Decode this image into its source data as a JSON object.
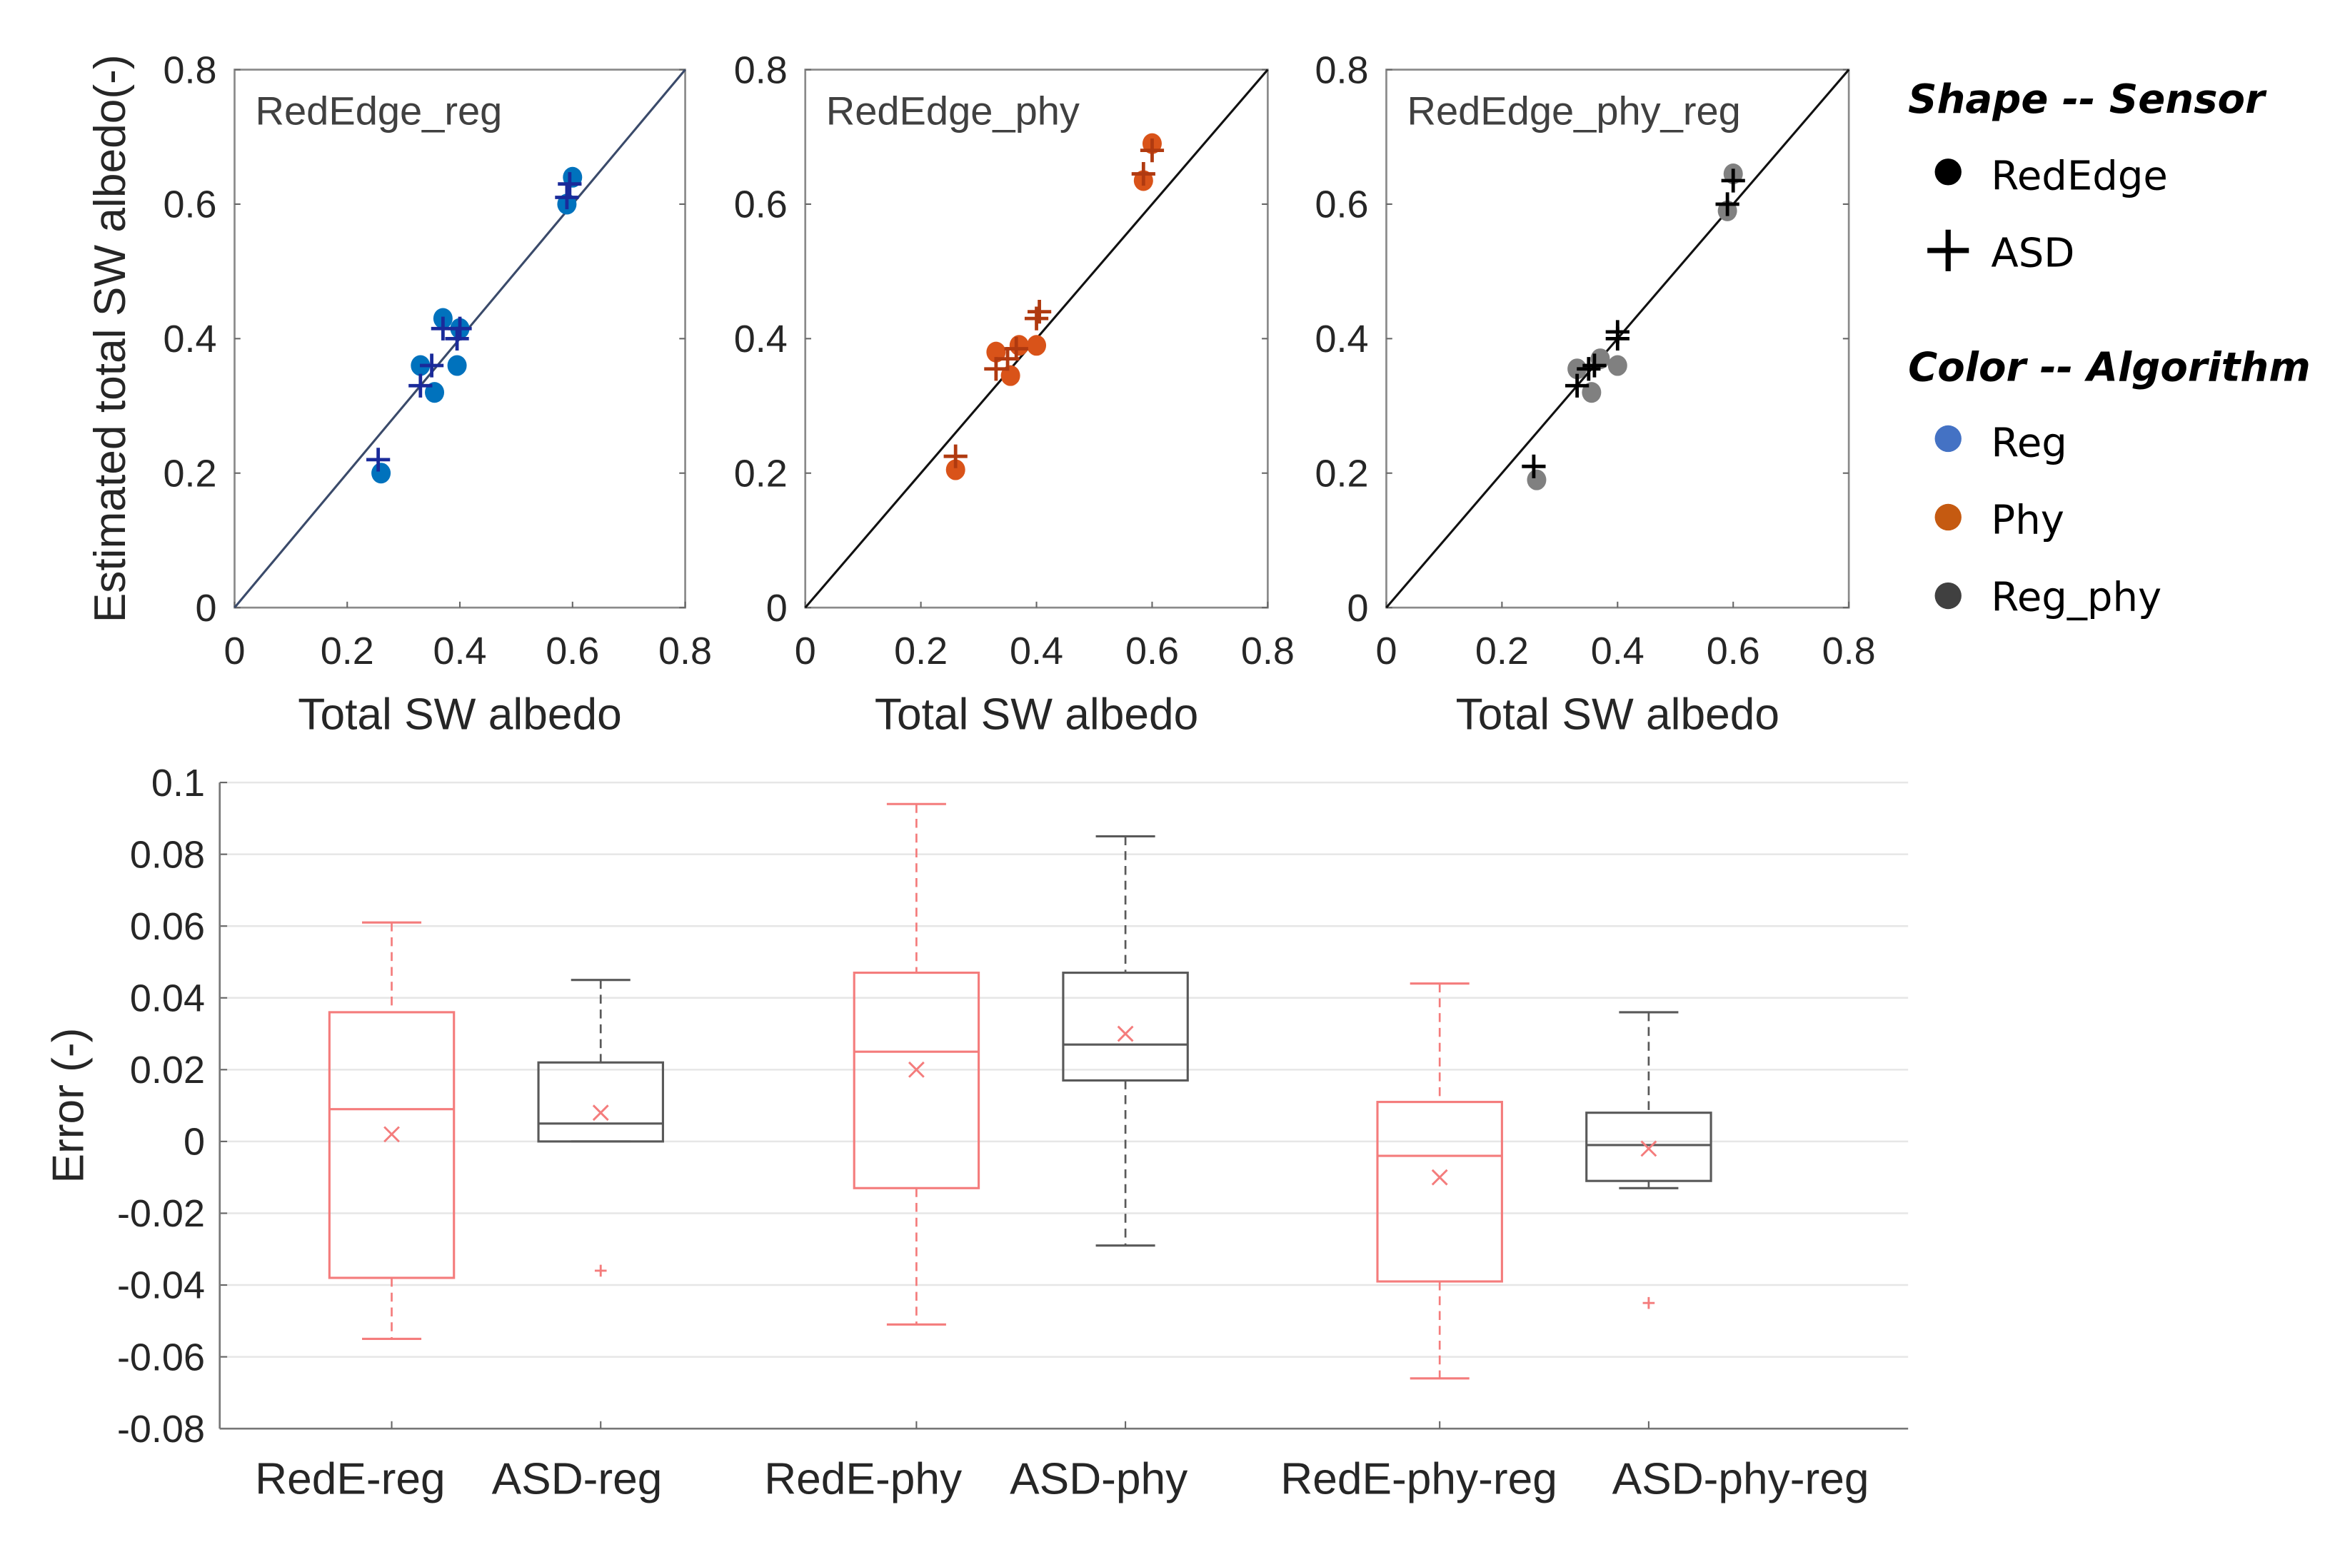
{
  "chart_data": [
    {
      "type": "scatter",
      "title": "RedEdge_reg",
      "xlabel": "Total SW albedo",
      "ylabel": "Estimated total SW albedo(-)",
      "xlim": [
        0,
        0.8
      ],
      "ylim": [
        0,
        0.8
      ],
      "xticks": [
        "0",
        "0.2",
        "0.4",
        "0.6",
        "0.8"
      ],
      "yticks": [
        "0",
        "0.2",
        "0.4",
        "0.6",
        "0.8"
      ],
      "color": "#0072BD",
      "cross_color": "#1a2a9a",
      "series": [
        {
          "name": "RedEdge",
          "marker": "dot",
          "points": [
            [
              0.26,
              0.2
            ],
            [
              0.33,
              0.36
            ],
            [
              0.355,
              0.32
            ],
            [
              0.37,
              0.43
            ],
            [
              0.395,
              0.36
            ],
            [
              0.4,
              0.415
            ],
            [
              0.59,
              0.6
            ],
            [
              0.6,
              0.64
            ]
          ]
        },
        {
          "name": "ASD",
          "marker": "plus",
          "points": [
            [
              0.255,
              0.22
            ],
            [
              0.33,
              0.33
            ],
            [
              0.35,
              0.36
            ],
            [
              0.37,
              0.415
            ],
            [
              0.395,
              0.4
            ],
            [
              0.4,
              0.415
            ],
            [
              0.59,
              0.61
            ],
            [
              0.595,
              0.63
            ]
          ]
        }
      ]
    },
    {
      "type": "scatter",
      "title": "RedEdge_phy",
      "xlabel": "Total SW albedo",
      "xlim": [
        0,
        0.8
      ],
      "ylim": [
        0,
        0.8
      ],
      "xticks": [
        "0",
        "0.2",
        "0.4",
        "0.6",
        "0.8"
      ],
      "yticks": [
        "0",
        "0.2",
        "0.4",
        "0.6",
        "0.8"
      ],
      "color": "#D95319",
      "cross_color": "#b03a10",
      "series": [
        {
          "name": "RedEdge",
          "marker": "dot",
          "points": [
            [
              0.26,
              0.205
            ],
            [
              0.33,
              0.38
            ],
            [
              0.355,
              0.345
            ],
            [
              0.37,
              0.39
            ],
            [
              0.4,
              0.39
            ],
            [
              0.585,
              0.635
            ],
            [
              0.6,
              0.69
            ]
          ]
        },
        {
          "name": "ASD",
          "marker": "plus",
          "points": [
            [
              0.26,
              0.225
            ],
            [
              0.33,
              0.355
            ],
            [
              0.35,
              0.37
            ],
            [
              0.365,
              0.385
            ],
            [
              0.4,
              0.43
            ],
            [
              0.405,
              0.44
            ],
            [
              0.585,
              0.645
            ],
            [
              0.6,
              0.68
            ]
          ]
        }
      ]
    },
    {
      "type": "scatter",
      "title": "RedEdge_phy_reg",
      "xlabel": "Total SW albedo",
      "xlim": [
        0,
        0.8
      ],
      "ylim": [
        0,
        0.8
      ],
      "xticks": [
        "0",
        "0.2",
        "0.4",
        "0.6",
        "0.8"
      ],
      "yticks": [
        "0",
        "0.2",
        "0.4",
        "0.6",
        "0.8"
      ],
      "color": "#808080",
      "cross_color": "#000000",
      "series": [
        {
          "name": "RedEdge",
          "marker": "dot",
          "points": [
            [
              0.26,
              0.19
            ],
            [
              0.33,
              0.355
            ],
            [
              0.355,
              0.32
            ],
            [
              0.37,
              0.37
            ],
            [
              0.4,
              0.36
            ],
            [
              0.59,
              0.59
            ],
            [
              0.6,
              0.645
            ]
          ]
        },
        {
          "name": "ASD",
          "marker": "plus",
          "points": [
            [
              0.255,
              0.21
            ],
            [
              0.33,
              0.33
            ],
            [
              0.35,
              0.355
            ],
            [
              0.36,
              0.36
            ],
            [
              0.4,
              0.4
            ],
            [
              0.4,
              0.41
            ],
            [
              0.59,
              0.6
            ],
            [
              0.6,
              0.635
            ]
          ]
        }
      ]
    },
    {
      "type": "box",
      "ylabel": "Error (-)",
      "ylim": [
        -0.08,
        0.1
      ],
      "yticks": [
        "0.1",
        "0.08",
        "0.06",
        "0.04",
        "0.02",
        "0",
        "-0.02",
        "-0.04",
        "-0.06",
        "-0.08"
      ],
      "categories": [
        "RedE-reg",
        "ASD-reg",
        "RedE-phy",
        "ASD-phy",
        "RedE-phy-reg",
        "ASD-phy-reg"
      ],
      "boxes": [
        {
          "color": "#F47C7C",
          "whisker_high": 0.061,
          "q3": 0.036,
          "median": 0.009,
          "q1": -0.038,
          "whisker_low": -0.055,
          "mean": 0.002,
          "outliers": []
        },
        {
          "color": "#595959",
          "whisker_high": 0.045,
          "q3": 0.022,
          "median": 0.005,
          "q1": 0.0,
          "whisker_low": 0.0,
          "mean": 0.008,
          "outliers": [
            -0.036
          ]
        },
        {
          "color": "#F47C7C",
          "whisker_high": 0.094,
          "q3": 0.047,
          "median": 0.025,
          "q1": -0.013,
          "whisker_low": -0.051,
          "mean": 0.02,
          "outliers": []
        },
        {
          "color": "#595959",
          "whisker_high": 0.085,
          "q3": 0.047,
          "median": 0.027,
          "q1": 0.017,
          "whisker_low": -0.029,
          "mean": 0.03,
          "outliers": []
        },
        {
          "color": "#F47C7C",
          "whisker_high": 0.044,
          "q3": 0.011,
          "median": -0.004,
          "q1": -0.039,
          "whisker_low": -0.066,
          "mean": -0.01,
          "outliers": []
        },
        {
          "color": "#595959",
          "whisker_high": 0.036,
          "q3": 0.008,
          "median": -0.001,
          "q1": -0.011,
          "whisker_low": -0.013,
          "mean": -0.002,
          "outliers": [
            -0.045
          ]
        }
      ],
      "mean_marker_color": "#F47C7C",
      "outlier_color": "#F47C7C"
    }
  ],
  "legend": {
    "shape_title": "Shape -- Sensor",
    "shapes": [
      {
        "label": "RedEdge",
        "marker": "dot"
      },
      {
        "label": "ASD",
        "marker": "plus"
      }
    ],
    "color_title": "Color -- Algorithm",
    "colors": [
      {
        "label": "Reg",
        "color": "#4472C4"
      },
      {
        "label": "Phy",
        "color": "#C55A11"
      },
      {
        "label": "Reg_phy",
        "color": "#404040"
      }
    ]
  }
}
